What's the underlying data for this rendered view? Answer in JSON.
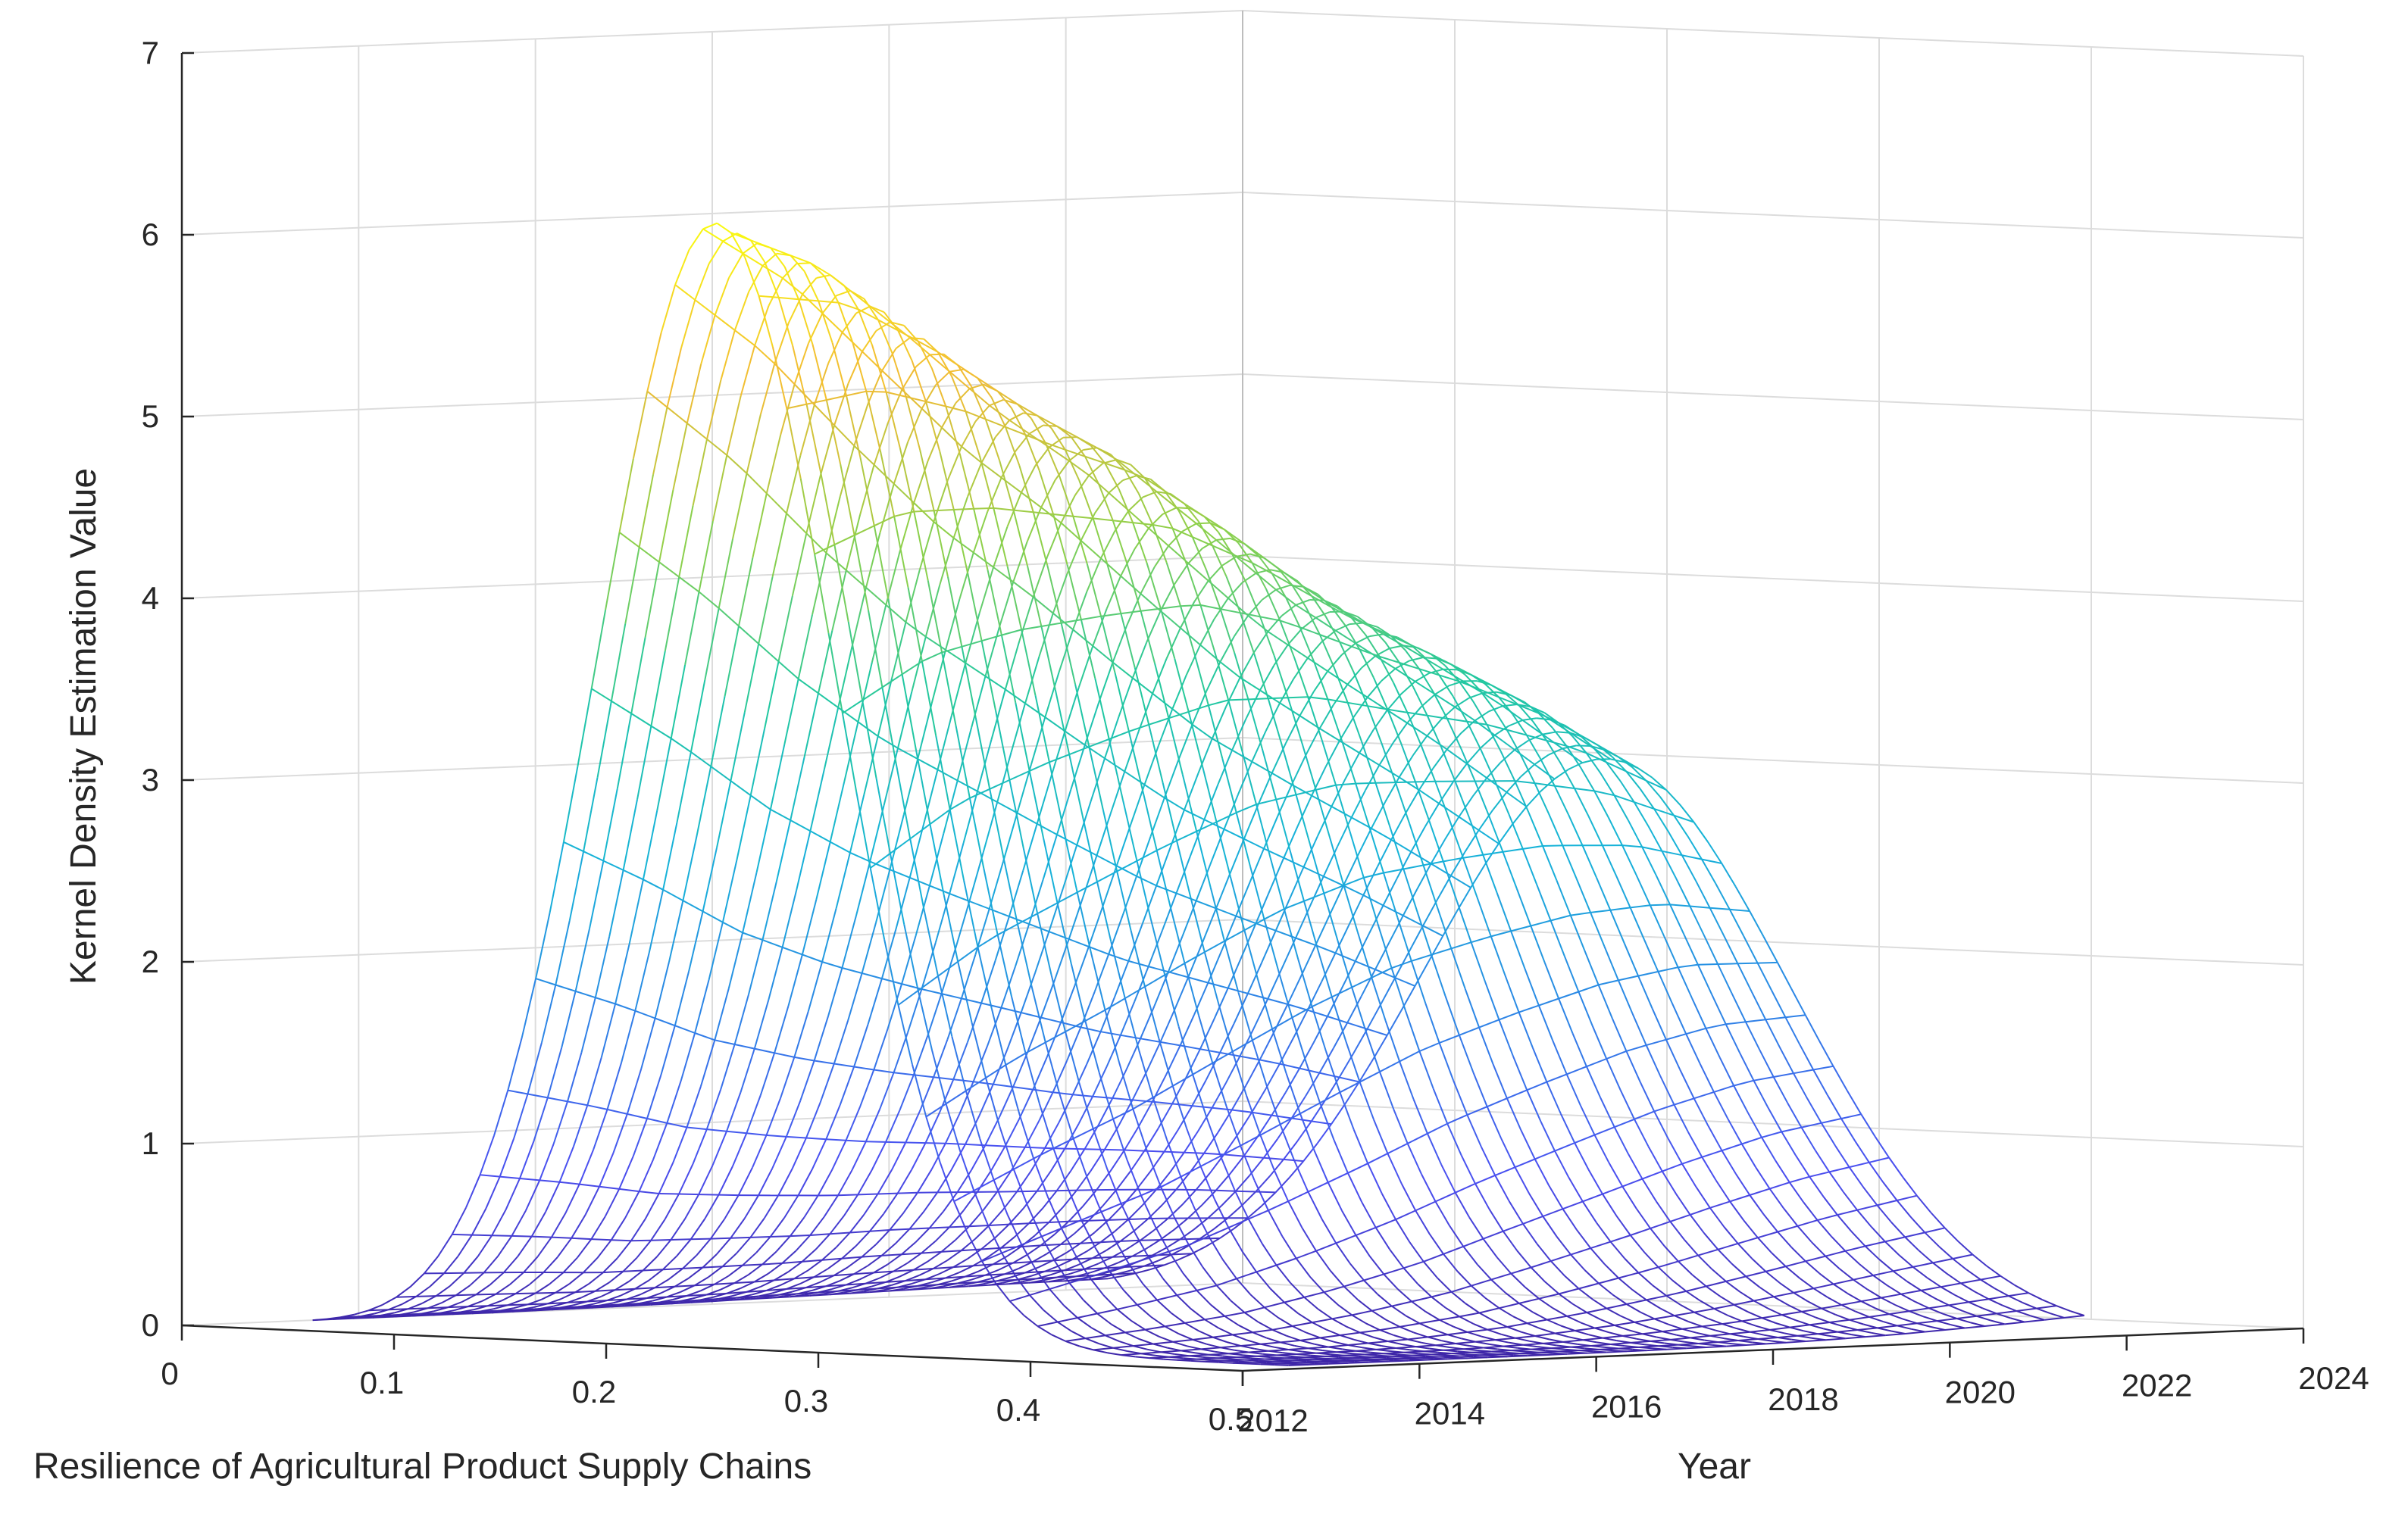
{
  "chart_data": {
    "type": "surface",
    "title": "",
    "xlabel": "Resilience of Agricultural Product Supply Chains",
    "ylabel": "Year",
    "zlabel": "Kernel Density Estimation Value",
    "xlim": [
      0,
      0.5
    ],
    "ylim": [
      2012,
      2024
    ],
    "zlim": [
      0,
      7
    ],
    "x_ticks": [
      "0",
      "0.1",
      "0.2",
      "0.3",
      "0.4",
      "0.5"
    ],
    "y_ticks": [
      "2012",
      "2014",
      "2016",
      "2018",
      "2020",
      "2022",
      "2024"
    ],
    "z_ticks": [
      "0",
      "1",
      "2",
      "3",
      "4",
      "5",
      "6",
      "7"
    ],
    "grid": true,
    "colormap": [
      "#3e26a8",
      "#4a4ff0",
      "#2d86e6",
      "#16b3d8",
      "#22c8a0",
      "#8ed04a",
      "#f2bc34",
      "#f9fb0e"
    ],
    "years": [
      2013,
      2014,
      2015,
      2016,
      2017,
      2018,
      2019,
      2020,
      2021,
      2022
    ],
    "peaks": [
      {
        "year": 2013,
        "center": 0.21,
        "width": 0.056,
        "height": 6.15
      },
      {
        "year": 2014,
        "center": 0.215,
        "width": 0.058,
        "height": 5.9
      },
      {
        "year": 2015,
        "center": 0.22,
        "width": 0.06,
        "height": 5.5
      },
      {
        "year": 2016,
        "center": 0.225,
        "width": 0.063,
        "height": 5.1
      },
      {
        "year": 2017,
        "center": 0.23,
        "width": 0.066,
        "height": 4.8
      },
      {
        "year": 2018,
        "center": 0.235,
        "width": 0.07,
        "height": 4.4
      },
      {
        "year": 2019,
        "center": 0.24,
        "width": 0.074,
        "height": 4.0
      },
      {
        "year": 2020,
        "center": 0.245,
        "width": 0.078,
        "height": 3.7
      },
      {
        "year": 2021,
        "center": 0.25,
        "width": 0.082,
        "height": 3.4
      },
      {
        "year": 2022,
        "center": 0.255,
        "width": 0.086,
        "height": 3.05
      }
    ]
  }
}
